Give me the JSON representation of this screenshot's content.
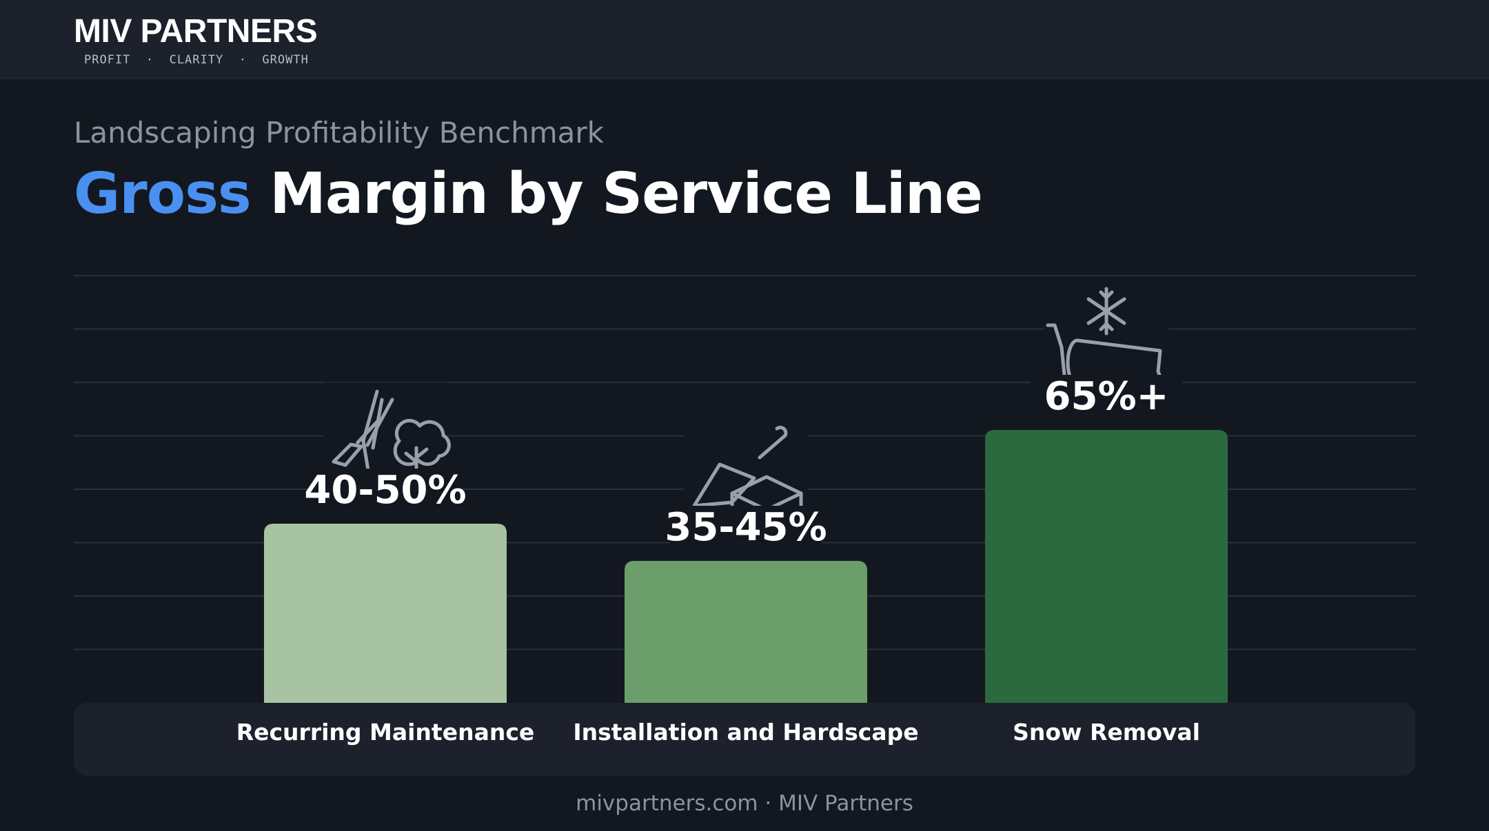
{
  "brand": {
    "name": "MIV PARTNERS",
    "tagline": "PROFIT  ·  CLARITY  ·  GROWTH"
  },
  "header": {
    "subtitle": "Landscaping Profitability Benchmark",
    "title_accent": "Gross",
    "title_rest": "Margin by Service Line"
  },
  "footer": {
    "text": "mivpartners.com · MIV Partners"
  },
  "chart_data": {
    "type": "bar",
    "categories": [
      "Recurring Maintenance",
      "Installation and Hardscape",
      "Snow Removal"
    ],
    "values": [
      50,
      45,
      65
    ],
    "value_labels": [
      "40-50%",
      "35-45%",
      "65%+"
    ],
    "icons": [
      "pruning-shears-and-tree-icon",
      "trowel-and-brick-icon",
      "snowflake-and-plow-icon"
    ],
    "colors": [
      "#a7c3a2",
      "#6b9e6b",
      "#2b6a3e"
    ],
    "ylim": [
      0,
      100
    ],
    "grid": true,
    "legend": "none"
  }
}
